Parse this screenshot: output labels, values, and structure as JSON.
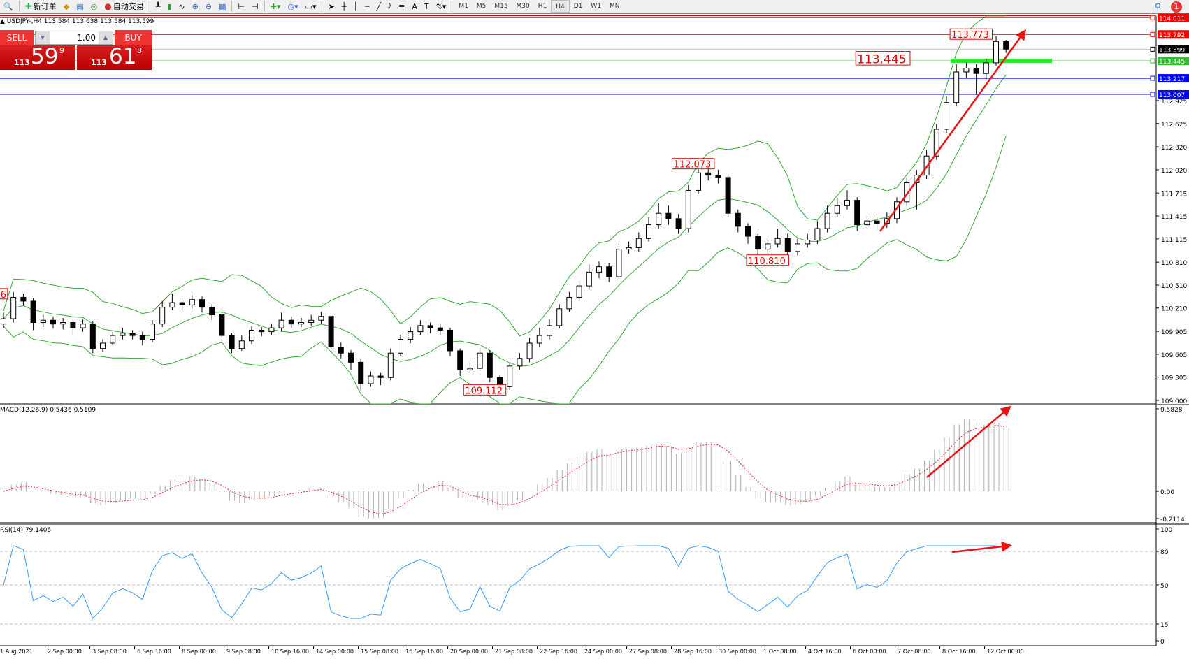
{
  "toolbar": {
    "new_order": "新订单",
    "auto_trading": "自动交易",
    "timeframes": [
      "M1",
      "M5",
      "M15",
      "M30",
      "H1",
      "H4",
      "D1",
      "W1",
      "MN"
    ],
    "active_timeframe": "H4",
    "notification_count": "1"
  },
  "chart": {
    "header": "USDJPY-,H4  113.584 113.638 113.584 113.599"
  },
  "trade_panel": {
    "sell_label": "SELL",
    "buy_label": "BUY",
    "lot": "1.00",
    "bid_small": "113",
    "bid_big": "59",
    "bid_sup": "9",
    "ask_small": "113",
    "ask_big": "61",
    "ask_sup": "8",
    "color": "#e02424"
  },
  "price_axis": {
    "ticks": [
      "112.925",
      "112.625",
      "112.320",
      "112.020",
      "111.715",
      "111.415",
      "111.115",
      "110.810",
      "110.510",
      "110.210",
      "109.905",
      "109.605",
      "109.305",
      "109.000"
    ]
  },
  "levels": [
    {
      "value": "114.011",
      "color": "#ff0000",
      "box": "#ff0000"
    },
    {
      "value": "113.792",
      "color": "#dd0000",
      "box": "#ff0000"
    },
    {
      "value": "113.599",
      "color": "#c0c0c0",
      "box": "#000000"
    },
    {
      "value": "113.445",
      "color": "#33bb33",
      "box": "#33bb33"
    },
    {
      "value": "113.217",
      "color": "#0000dd",
      "box": "#0000ff"
    },
    {
      "value": "113.007",
      "color": "#0000dd",
      "box": "#0000ff"
    }
  ],
  "annotations": [
    {
      "text": "113.773",
      "price": 113.77,
      "index": 95.5
    },
    {
      "text": "113.445",
      "price": 113.445,
      "index": 86,
      "large": true
    },
    {
      "text": "112.073",
      "price": 112.073,
      "index": 67.5
    },
    {
      "text": "110.810",
      "price": 110.81,
      "index": 75
    },
    {
      "text": "109.112",
      "price": 109.112,
      "index": 46.5
    },
    {
      "text": "6",
      "price": 110.37,
      "index": -0.3
    }
  ],
  "chart_data": {
    "type": "candlestick",
    "symbol": "USDJPY-",
    "timeframe": "H4",
    "ylim": [
      109.0,
      114.011
    ],
    "candles": [
      [
        110.0,
        110.15,
        109.95,
        110.07
      ],
      [
        110.07,
        110.42,
        110.02,
        110.35
      ],
      [
        110.35,
        110.4,
        110.24,
        110.3
      ],
      [
        110.3,
        110.34,
        109.92,
        110.02
      ],
      [
        110.02,
        110.12,
        109.96,
        110.05
      ],
      [
        110.05,
        110.1,
        109.94,
        110.0
      ],
      [
        110.0,
        110.08,
        109.93,
        110.02
      ],
      [
        110.02,
        110.07,
        109.85,
        109.95
      ],
      [
        109.95,
        110.06,
        109.9,
        110.0
      ],
      [
        110.0,
        110.04,
        109.62,
        109.68
      ],
      [
        109.68,
        109.8,
        109.64,
        109.75
      ],
      [
        109.75,
        109.9,
        109.72,
        109.85
      ],
      [
        109.85,
        109.95,
        109.8,
        109.88
      ],
      [
        109.88,
        109.92,
        109.8,
        109.85
      ],
      [
        109.85,
        109.9,
        109.72,
        109.8
      ],
      [
        109.8,
        110.05,
        109.76,
        110.0
      ],
      [
        110.0,
        110.3,
        109.96,
        110.22
      ],
      [
        110.22,
        110.4,
        110.18,
        110.28
      ],
      [
        110.28,
        110.34,
        110.16,
        110.25
      ],
      [
        110.25,
        110.38,
        110.2,
        110.32
      ],
      [
        110.32,
        110.36,
        110.15,
        110.22
      ],
      [
        110.22,
        110.26,
        110.05,
        110.12
      ],
      [
        110.12,
        110.15,
        109.78,
        109.85
      ],
      [
        109.85,
        109.88,
        109.62,
        109.68
      ],
      [
        109.68,
        109.85,
        109.65,
        109.78
      ],
      [
        109.78,
        109.97,
        109.74,
        109.92
      ],
      [
        109.92,
        109.96,
        109.84,
        109.9
      ],
      [
        109.9,
        110.0,
        109.86,
        109.95
      ],
      [
        109.95,
        110.15,
        109.9,
        110.05
      ],
      [
        110.05,
        110.1,
        109.95,
        110.0
      ],
      [
        110.0,
        110.08,
        109.96,
        110.02
      ],
      [
        110.02,
        110.12,
        109.98,
        110.05
      ],
      [
        110.05,
        110.16,
        110.0,
        110.1
      ],
      [
        110.1,
        110.12,
        109.64,
        109.7
      ],
      [
        109.7,
        109.76,
        109.55,
        109.62
      ],
      [
        109.62,
        109.66,
        109.4,
        109.5
      ],
      [
        109.5,
        109.54,
        109.12,
        109.22
      ],
      [
        109.22,
        109.38,
        109.18,
        109.32
      ],
      [
        109.32,
        109.36,
        109.2,
        109.3
      ],
      [
        109.3,
        109.68,
        109.26,
        109.62
      ],
      [
        109.62,
        109.86,
        109.58,
        109.8
      ],
      [
        109.8,
        109.96,
        109.75,
        109.9
      ],
      [
        109.9,
        110.05,
        109.86,
        109.98
      ],
      [
        109.98,
        110.02,
        109.88,
        109.95
      ],
      [
        109.95,
        110.0,
        109.85,
        109.92
      ],
      [
        109.92,
        109.95,
        109.58,
        109.65
      ],
      [
        109.65,
        109.68,
        109.32,
        109.4
      ],
      [
        109.4,
        109.5,
        109.35,
        109.42
      ],
      [
        109.42,
        109.7,
        109.38,
        109.62
      ],
      [
        109.62,
        109.66,
        109.24,
        109.3
      ],
      [
        109.3,
        109.34,
        109.11,
        109.18
      ],
      [
        109.18,
        109.5,
        109.14,
        109.45
      ],
      [
        109.45,
        109.62,
        109.4,
        109.55
      ],
      [
        109.55,
        109.82,
        109.5,
        109.75
      ],
      [
        109.75,
        109.95,
        109.7,
        109.85
      ],
      [
        109.85,
        110.06,
        109.8,
        109.98
      ],
      [
        109.98,
        110.26,
        109.94,
        110.2
      ],
      [
        110.2,
        110.42,
        110.16,
        110.35
      ],
      [
        110.35,
        110.58,
        110.3,
        110.5
      ],
      [
        110.5,
        110.78,
        110.45,
        110.68
      ],
      [
        110.68,
        110.82,
        110.6,
        110.75
      ],
      [
        110.75,
        110.8,
        110.55,
        110.62
      ],
      [
        110.62,
        111.05,
        110.58,
        110.98
      ],
      [
        110.98,
        111.08,
        110.92,
        111.0
      ],
      [
        111.0,
        111.2,
        110.95,
        111.12
      ],
      [
        111.12,
        111.4,
        111.08,
        111.3
      ],
      [
        111.3,
        111.58,
        111.25,
        111.45
      ],
      [
        111.45,
        111.55,
        111.3,
        111.38
      ],
      [
        111.38,
        111.44,
        111.18,
        111.25
      ],
      [
        111.25,
        111.82,
        111.2,
        111.75
      ],
      [
        111.75,
        112.07,
        111.7,
        111.98
      ],
      [
        111.98,
        112.05,
        111.88,
        111.95
      ],
      [
        111.95,
        112.02,
        111.84,
        111.92
      ],
      [
        111.92,
        111.96,
        111.4,
        111.45
      ],
      [
        111.45,
        111.5,
        111.2,
        111.28
      ],
      [
        111.28,
        111.32,
        111.05,
        111.15
      ],
      [
        111.15,
        111.18,
        110.81,
        110.98
      ],
      [
        110.98,
        111.12,
        110.92,
        111.05
      ],
      [
        111.05,
        111.25,
        111.0,
        111.12
      ],
      [
        111.12,
        111.18,
        110.88,
        110.95
      ],
      [
        110.95,
        111.12,
        110.9,
        111.05
      ],
      [
        111.05,
        111.18,
        111.0,
        111.1
      ],
      [
        111.1,
        111.35,
        111.05,
        111.25
      ],
      [
        111.25,
        111.55,
        111.2,
        111.45
      ],
      [
        111.45,
        111.65,
        111.4,
        111.55
      ],
      [
        111.55,
        111.75,
        111.5,
        111.62
      ],
      [
        111.62,
        111.66,
        111.22,
        111.3
      ],
      [
        111.3,
        111.42,
        111.25,
        111.35
      ],
      [
        111.35,
        111.4,
        111.24,
        111.32
      ],
      [
        111.32,
        111.46,
        111.26,
        111.38
      ],
      [
        111.38,
        111.66,
        111.32,
        111.6
      ],
      [
        111.6,
        111.92,
        111.55,
        111.85
      ],
      [
        111.85,
        112.02,
        111.5,
        111.95
      ],
      [
        111.95,
        112.28,
        111.9,
        112.2
      ],
      [
        112.2,
        112.62,
        112.15,
        112.55
      ],
      [
        112.55,
        112.98,
        112.5,
        112.9
      ],
      [
        112.9,
        113.4,
        112.85,
        113.3
      ],
      [
        113.3,
        113.42,
        113.22,
        113.35
      ],
      [
        113.35,
        113.4,
        113.0,
        113.28
      ],
      [
        113.28,
        113.48,
        113.2,
        113.42
      ],
      [
        113.42,
        113.77,
        113.38,
        113.7
      ],
      [
        113.7,
        113.72,
        113.55,
        113.6
      ]
    ],
    "indicators": {
      "bollinger": {
        "color": "#33aa33"
      },
      "macd": {
        "label": "MACD(12,26,9) 0.5436 0.5109",
        "ticks": [
          "0.5828",
          "0.00",
          "-0.2114"
        ],
        "range": [
          -0.2114,
          0.5828
        ],
        "histogram_color": "#b0b0b0",
        "signal_color": "#ee2222"
      },
      "rsi": {
        "label": "RSI(14) 79.1405",
        "ticks": [
          "100",
          "80",
          "50",
          "15",
          "0"
        ],
        "levels": [
          80,
          50,
          15
        ],
        "line_color": "#3399ff"
      }
    },
    "x_tick_labels": [
      "1 Aug 2021",
      "2 Sep 00:00",
      "3 Sep 08:00",
      "6 Sep 16:00",
      "8 Sep 00:00",
      "9 Sep 08:00",
      "10 Sep 16:00",
      "14 Sep 00:00",
      "15 Sep 08:00",
      "16 Sep 16:00",
      "20 Sep 00:00",
      "21 Sep 08:00",
      "22 Sep 16:00",
      "24 Sep 00:00",
      "27 Sep 08:00",
      "28 Sep 16:00",
      "30 Sep 00:00",
      "1 Oct 08:00",
      "4 Oct 16:00",
      "6 Oct 00:00",
      "7 Oct 08:00",
      "8 Oct 16:00",
      "12 Oct 00:00"
    ],
    "trend_arrows_color": "#ee1111"
  }
}
